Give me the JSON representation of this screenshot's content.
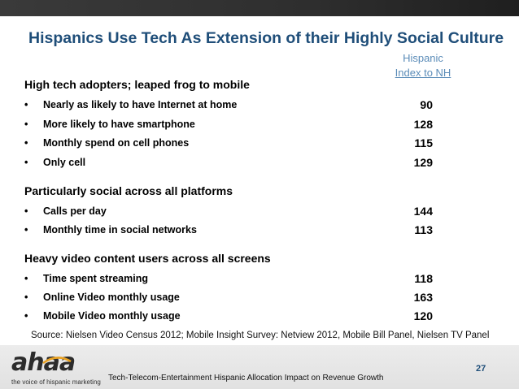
{
  "title": "Hispanics Use Tech As Extension of their Highly Social Culture",
  "column_header": {
    "line1": "Hispanic",
    "line2": "Index to NH"
  },
  "sections": [
    {
      "heading": "High tech adopters; leaped frog to mobile",
      "rows": [
        {
          "bullet": "•",
          "label": "Nearly as likely to have Internet at home",
          "value": "90"
        },
        {
          "bullet": "•",
          "label": "More likely to have smartphone",
          "value": "128"
        },
        {
          "bullet": "•",
          "label": "Monthly spend on cell phones",
          "value": "115"
        },
        {
          "bullet": "•",
          "label": "Only cell",
          "value": "129"
        }
      ]
    },
    {
      "heading": "Particularly social across all platforms",
      "rows": [
        {
          "bullet": "•",
          "label": "Calls per day",
          "value": "144"
        },
        {
          "bullet": "•",
          "label": "Monthly time in social networks",
          "value": "113"
        }
      ]
    },
    {
      "heading": "Heavy video content users across all screens",
      "rows": [
        {
          "bullet": "•",
          "label": "Time spent streaming",
          "value": "118"
        },
        {
          "bullet": "•",
          "label": "Online Video monthly usage",
          "value": "163"
        },
        {
          "bullet": "•",
          "label": "Mobile Video monthly usage",
          "value": "120"
        }
      ]
    }
  ],
  "source": "Source: Nielsen Video Census 2012; Mobile Insight Survey: Netview 2012, Mobile Bill Panel, Nielsen TV Panel",
  "footer": {
    "logo_text": "ahaa",
    "logo_tagline": "the voice of hispanic marketing",
    "caption": "Tech-Telecom-Entertainment Hispanic Allocation Impact on Revenue Growth",
    "page_number": "27"
  },
  "colors": {
    "title": "#1f4e79",
    "header_text": "#5b8cb8",
    "logo_accent": "#e8a020"
  }
}
